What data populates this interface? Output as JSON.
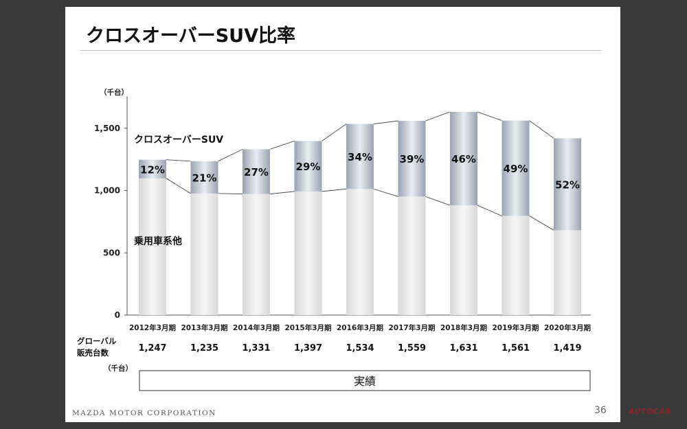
{
  "slide": {
    "title": "クロスオーバーSUV比率",
    "company": "MAZDA MOTOR CORPORATION",
    "page_number": "36",
    "watermark": "AUTOCAR"
  },
  "colors": {
    "background": "#3a3a3a",
    "slide": "#ffffff",
    "suv_segment": "#b8c0cc",
    "passenger_segment": "#e6e6e6"
  },
  "chart_data": {
    "type": "bar",
    "stacked": true,
    "y_unit_label": "（千台）",
    "ylim": [
      0,
      1700
    ],
    "yticks": [
      0,
      500,
      1000,
      1500
    ],
    "ytick_labels": [
      "0",
      "500",
      "1,000",
      "1,500"
    ],
    "categories": [
      "2012年3月期",
      "2013年3月期",
      "2014年3月期",
      "2015年3月期",
      "2016年3月期",
      "2017年3月期",
      "2018年3月期",
      "2019年3月期",
      "2020年3月期"
    ],
    "series": [
      {
        "name": "乗用車系他",
        "values": [
          1097,
          976,
          972,
          992,
          1012,
          951,
          881,
          796,
          681
        ]
      },
      {
        "name": "クロスオーバーSUV",
        "values": [
          150,
          259,
          359,
          405,
          522,
          608,
          750,
          765,
          738
        ]
      }
    ],
    "suv_share_labels": [
      "12%",
      "21%",
      "27%",
      "29%",
      "34%",
      "39%",
      "46%",
      "49%",
      "52%"
    ],
    "totals": [
      1247,
      1235,
      1331,
      1397,
      1534,
      1559,
      1631,
      1561,
      1419
    ],
    "total_labels": [
      "1,247",
      "1,235",
      "1,331",
      "1,397",
      "1,534",
      "1,559",
      "1,631",
      "1,561",
      "1,419"
    ],
    "total_row_label": [
      "グローバル",
      "販売台数"
    ],
    "total_unit_label": "（千台）",
    "period_label": "実績",
    "grid": false,
    "legend": "inline"
  }
}
